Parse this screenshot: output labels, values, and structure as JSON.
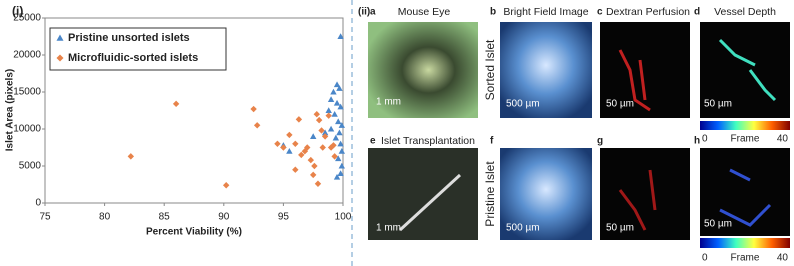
{
  "chart_data": {
    "type": "scatter",
    "panel_label": "(i)",
    "xlabel": "Percent Viability (%)",
    "ylabel": "Islet Area (pixels)",
    "xlim": [
      75,
      100
    ],
    "xticks": [
      75,
      80,
      85,
      90,
      95,
      100
    ],
    "ylim": [
      0,
      25000
    ],
    "yticks": [
      0,
      5000,
      10000,
      15000,
      20000,
      25000
    ],
    "grid": false,
    "legend": "upper left",
    "series": [
      {
        "name": "Pristine unsorted islets",
        "color": "#4a86c8",
        "marker": "triangle",
        "x": [
          99.8,
          99.5,
          99.7,
          99.2,
          99.0,
          99.5,
          99.8,
          98.8,
          99.3,
          99.6,
          99.9,
          99.0,
          99.7,
          99.4,
          99.8,
          99.9,
          99.6,
          99.9,
          99.8,
          99.5,
          95.0,
          95.5,
          97.5,
          98.5
        ],
        "values": [
          22500,
          16000,
          15500,
          15000,
          14000,
          13500,
          13000,
          12500,
          12000,
          11000,
          10500,
          10000,
          9500,
          8800,
          8000,
          7000,
          6000,
          5000,
          4000,
          3500,
          7800,
          7000,
          9000,
          9500
        ]
      },
      {
        "name": "Microfluidic-sorted islets",
        "color": "#e8834a",
        "marker": "diamond",
        "x": [
          82.2,
          86.0,
          90.2,
          92.5,
          92.8,
          94.5,
          95.0,
          95.5,
          96.0,
          96.3,
          96.5,
          97.0,
          97.3,
          97.6,
          97.8,
          98.0,
          98.2,
          98.3,
          97.5,
          98.8,
          99.0,
          99.2,
          99.3,
          96.0,
          96.8,
          97.9,
          98.5
        ],
        "values": [
          6300,
          13400,
          2400,
          12700,
          10500,
          8000,
          7500,
          9200,
          8000,
          11300,
          6500,
          7500,
          5800,
          5000,
          12000,
          11200,
          9800,
          7500,
          3800,
          11800,
          7500,
          7800,
          6300,
          4500,
          7000,
          2600,
          9000
        ]
      }
    ]
  },
  "panels": {
    "label": "(ii)",
    "a": {
      "letter": "a",
      "title": "Mouse Eye",
      "scale": "1 mm"
    },
    "b": {
      "letter": "b",
      "title": "Bright Field Image",
      "scale": "500 µm"
    },
    "c": {
      "letter": "c",
      "title": "Dextran Perfusion",
      "scale": "50 µm"
    },
    "d": {
      "letter": "d",
      "title": "Vessel Depth",
      "scale": "50 µm",
      "colorbar": {
        "min": "0",
        "label": "Frame",
        "max": "40"
      }
    },
    "e": {
      "letter": "e",
      "title": "Islet Transplantation",
      "scale": "1 mm"
    },
    "f": {
      "letter": "f",
      "scale": "500 µm"
    },
    "g": {
      "letter": "g",
      "scale": "50 µm"
    },
    "h": {
      "letter": "h",
      "scale": "50 µm",
      "colorbar": {
        "min": "0",
        "label": "Frame",
        "max": "40"
      }
    },
    "row_labels": [
      "Sorted Islet",
      "Pristine Islet"
    ]
  }
}
